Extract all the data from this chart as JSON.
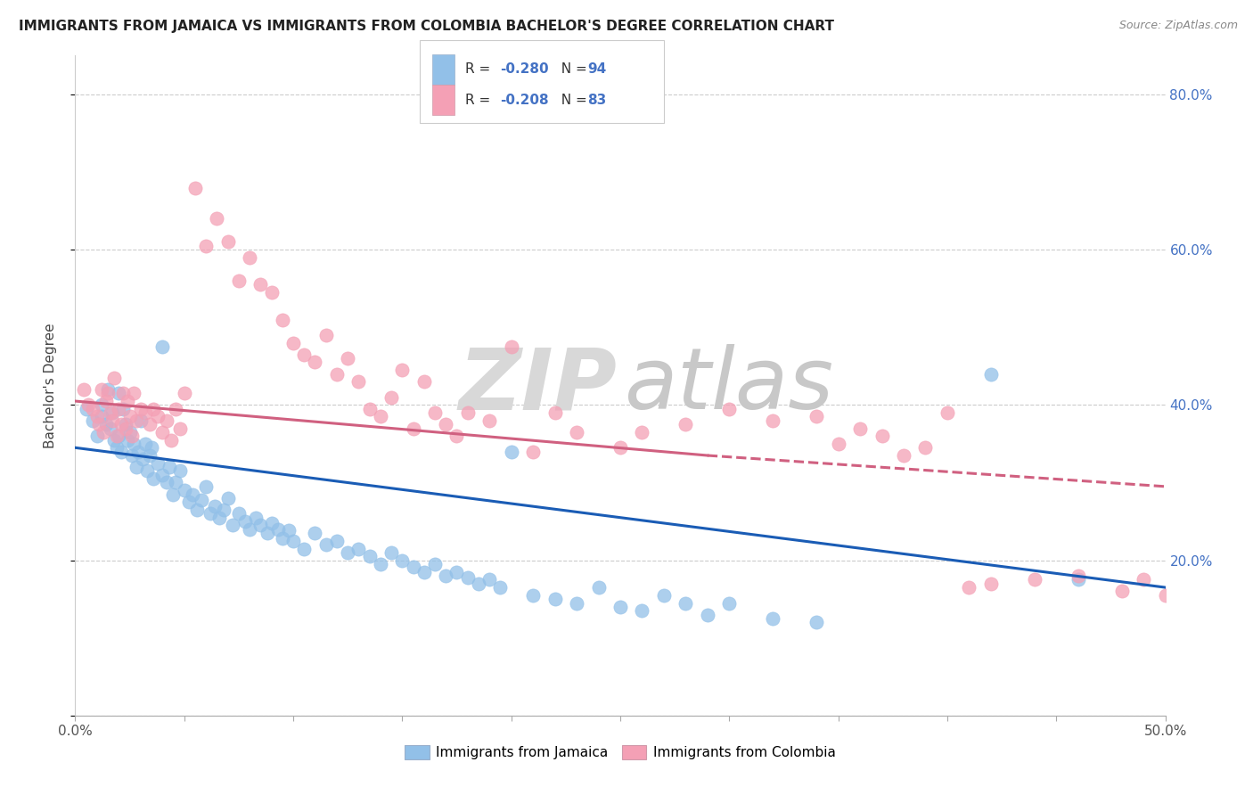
{
  "title": "IMMIGRANTS FROM JAMAICA VS IMMIGRANTS FROM COLOMBIA BACHELOR'S DEGREE CORRELATION CHART",
  "source": "Source: ZipAtlas.com",
  "ylabel": "Bachelor's Degree",
  "legend_r_blue": "-0.280",
  "legend_n_blue": "94",
  "legend_r_pink": "-0.208",
  "legend_n_pink": "83",
  "scatter_blue_color": "#92c0e8",
  "scatter_pink_color": "#f4a0b5",
  "trend_blue_color": "#1a5cb5",
  "trend_pink_color": "#d06080",
  "background_color": "#ffffff",
  "grid_color": "#cccccc",
  "xlim": [
    0.0,
    0.5
  ],
  "ylim": [
    0.0,
    0.85
  ],
  "blue_line": {
    "x0": 0.0,
    "y0": 0.345,
    "x1": 0.5,
    "y1": 0.165
  },
  "pink_line_solid": {
    "x0": 0.0,
    "y0": 0.405,
    "x1": 0.29,
    "y1": 0.335
  },
  "pink_line_dash": {
    "x0": 0.29,
    "y0": 0.335,
    "x1": 0.5,
    "y1": 0.295
  },
  "scatter_blue": {
    "x": [
      0.005,
      0.008,
      0.01,
      0.012,
      0.012,
      0.014,
      0.015,
      0.016,
      0.017,
      0.018,
      0.019,
      0.02,
      0.02,
      0.021,
      0.022,
      0.023,
      0.024,
      0.025,
      0.026,
      0.027,
      0.028,
      0.029,
      0.03,
      0.031,
      0.032,
      0.033,
      0.034,
      0.035,
      0.036,
      0.038,
      0.04,
      0.04,
      0.042,
      0.043,
      0.045,
      0.046,
      0.048,
      0.05,
      0.052,
      0.054,
      0.056,
      0.058,
      0.06,
      0.062,
      0.064,
      0.066,
      0.068,
      0.07,
      0.072,
      0.075,
      0.078,
      0.08,
      0.083,
      0.085,
      0.088,
      0.09,
      0.093,
      0.095,
      0.098,
      0.1,
      0.105,
      0.11,
      0.115,
      0.12,
      0.125,
      0.13,
      0.135,
      0.14,
      0.145,
      0.15,
      0.155,
      0.16,
      0.165,
      0.17,
      0.175,
      0.18,
      0.185,
      0.19,
      0.195,
      0.2,
      0.21,
      0.22,
      0.23,
      0.24,
      0.25,
      0.26,
      0.27,
      0.28,
      0.29,
      0.3,
      0.32,
      0.34,
      0.42,
      0.46
    ],
    "y": [
      0.395,
      0.38,
      0.36,
      0.4,
      0.385,
      0.375,
      0.42,
      0.37,
      0.39,
      0.355,
      0.345,
      0.415,
      0.36,
      0.34,
      0.395,
      0.375,
      0.355,
      0.365,
      0.335,
      0.35,
      0.32,
      0.34,
      0.38,
      0.33,
      0.35,
      0.315,
      0.335,
      0.345,
      0.305,
      0.325,
      0.31,
      0.475,
      0.3,
      0.32,
      0.285,
      0.3,
      0.315,
      0.29,
      0.275,
      0.285,
      0.265,
      0.278,
      0.295,
      0.26,
      0.27,
      0.255,
      0.265,
      0.28,
      0.245,
      0.26,
      0.25,
      0.24,
      0.255,
      0.245,
      0.235,
      0.248,
      0.24,
      0.228,
      0.238,
      0.225,
      0.215,
      0.235,
      0.22,
      0.225,
      0.21,
      0.215,
      0.205,
      0.195,
      0.21,
      0.2,
      0.192,
      0.185,
      0.195,
      0.18,
      0.185,
      0.178,
      0.17,
      0.175,
      0.165,
      0.34,
      0.155,
      0.15,
      0.145,
      0.165,
      0.14,
      0.135,
      0.155,
      0.145,
      0.13,
      0.145,
      0.125,
      0.12,
      0.44,
      0.175
    ]
  },
  "scatter_pink": {
    "x": [
      0.004,
      0.006,
      0.008,
      0.01,
      0.011,
      0.012,
      0.013,
      0.014,
      0.015,
      0.016,
      0.017,
      0.018,
      0.019,
      0.02,
      0.021,
      0.022,
      0.023,
      0.024,
      0.025,
      0.026,
      0.027,
      0.028,
      0.03,
      0.032,
      0.034,
      0.036,
      0.038,
      0.04,
      0.042,
      0.044,
      0.046,
      0.048,
      0.05,
      0.055,
      0.06,
      0.065,
      0.07,
      0.075,
      0.08,
      0.085,
      0.09,
      0.095,
      0.1,
      0.105,
      0.11,
      0.115,
      0.12,
      0.125,
      0.13,
      0.135,
      0.14,
      0.145,
      0.15,
      0.155,
      0.16,
      0.165,
      0.17,
      0.175,
      0.18,
      0.19,
      0.2,
      0.21,
      0.22,
      0.23,
      0.25,
      0.26,
      0.28,
      0.3,
      0.32,
      0.34,
      0.35,
      0.36,
      0.37,
      0.38,
      0.39,
      0.4,
      0.41,
      0.42,
      0.44,
      0.46,
      0.48,
      0.49,
      0.5
    ],
    "y": [
      0.42,
      0.4,
      0.395,
      0.385,
      0.375,
      0.42,
      0.365,
      0.405,
      0.415,
      0.39,
      0.38,
      0.435,
      0.36,
      0.395,
      0.375,
      0.415,
      0.37,
      0.405,
      0.385,
      0.36,
      0.415,
      0.38,
      0.395,
      0.39,
      0.375,
      0.395,
      0.385,
      0.365,
      0.38,
      0.355,
      0.395,
      0.37,
      0.415,
      0.68,
      0.605,
      0.64,
      0.61,
      0.56,
      0.59,
      0.555,
      0.545,
      0.51,
      0.48,
      0.465,
      0.455,
      0.49,
      0.44,
      0.46,
      0.43,
      0.395,
      0.385,
      0.41,
      0.445,
      0.37,
      0.43,
      0.39,
      0.375,
      0.36,
      0.39,
      0.38,
      0.475,
      0.34,
      0.39,
      0.365,
      0.345,
      0.365,
      0.375,
      0.395,
      0.38,
      0.385,
      0.35,
      0.37,
      0.36,
      0.335,
      0.345,
      0.39,
      0.165,
      0.17,
      0.175,
      0.18,
      0.16,
      0.175,
      0.155
    ]
  }
}
